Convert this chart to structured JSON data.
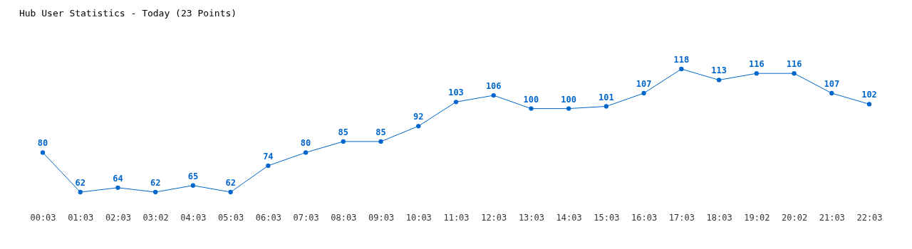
{
  "chart_data": {
    "type": "line",
    "title": "Hub User Statistics - Today (23 Points)",
    "categories": [
      "00:03",
      "01:03",
      "02:03",
      "03:02",
      "04:03",
      "05:03",
      "06:03",
      "07:03",
      "08:03",
      "09:03",
      "10:03",
      "11:03",
      "12:03",
      "13:03",
      "14:03",
      "15:03",
      "16:03",
      "17:03",
      "18:03",
      "19:02",
      "20:02",
      "21:03",
      "22:03"
    ],
    "series": [
      {
        "color": "#0066cc",
        "values": [
          80,
          62,
          64,
          62,
          65,
          62,
          74,
          80,
          85,
          85,
          92,
          103,
          106,
          100,
          100,
          101,
          107,
          118,
          113,
          116,
          116,
          107,
          102
        ]
      }
    ],
    "marker": "circle",
    "data_labels": true,
    "grid": false
  }
}
